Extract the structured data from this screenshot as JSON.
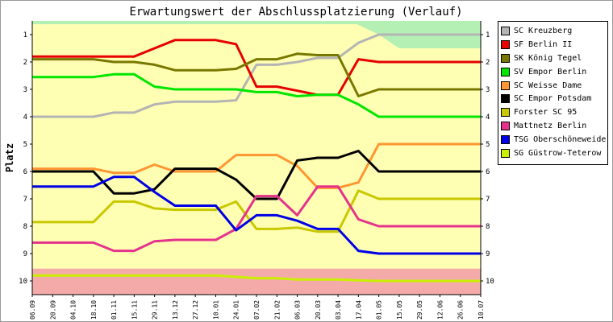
{
  "chart_data": {
    "type": "line",
    "title": "Erwartungswert der Abschlussplatzierung (Verlauf)",
    "xlabel": "",
    "ylabel": "Platz",
    "ylim": [
      10.5,
      0.5
    ],
    "y_ticks": [
      "1",
      "2",
      "3",
      "4",
      "5",
      "6",
      "7",
      "8",
      "9",
      "10"
    ],
    "categories": [
      "06.09",
      "20.09",
      "04.10",
      "18.10",
      "01.11",
      "15.11",
      "29.11",
      "13.12",
      "27.12",
      "10.01",
      "24.01",
      "07.02",
      "21.02",
      "06.03",
      "20.03",
      "03.04",
      "17.04",
      "01.05",
      "15.05",
      "29.05",
      "12.06",
      "26.06",
      "10.07"
    ],
    "grid": false,
    "legend_position": "right",
    "series": [
      {
        "name": "SC Kreuzberg",
        "color": "#b4b4b4",
        "values": [
          4.0,
          4.0,
          4.0,
          4.0,
          3.85,
          3.85,
          3.55,
          3.45,
          3.45,
          3.45,
          3.4,
          2.1,
          2.1,
          2.0,
          1.85,
          1.85,
          1.3,
          1.0,
          1.0,
          1.0,
          1.0,
          1.0,
          1.0
        ]
      },
      {
        "name": "SF Berlin II",
        "color": "#e60000",
        "values": [
          1.8,
          1.8,
          1.8,
          1.8,
          1.8,
          1.8,
          1.5,
          1.2,
          1.2,
          1.2,
          1.35,
          2.9,
          2.9,
          3.05,
          3.2,
          3.2,
          1.9,
          2.0,
          2.0,
          2.0,
          2.0,
          2.0,
          2.0
        ]
      },
      {
        "name": "SK König Tegel",
        "color": "#787800",
        "values": [
          1.9,
          1.9,
          1.9,
          1.9,
          2.0,
          2.0,
          2.1,
          2.3,
          2.3,
          2.3,
          2.25,
          1.9,
          1.9,
          1.7,
          1.75,
          1.75,
          3.25,
          3.0,
          3.0,
          3.0,
          3.0,
          3.0,
          3.0
        ]
      },
      {
        "name": "SV Empor Berlin",
        "color": "#00e600",
        "values": [
          2.55,
          2.55,
          2.55,
          2.55,
          2.45,
          2.45,
          2.9,
          3.0,
          3.0,
          3.0,
          3.0,
          3.1,
          3.1,
          3.25,
          3.2,
          3.2,
          3.55,
          4.0,
          4.0,
          4.0,
          4.0,
          4.0,
          4.0
        ]
      },
      {
        "name": "SC Weisse Dame",
        "color": "#ff9632",
        "values": [
          5.9,
          5.9,
          5.9,
          5.9,
          6.05,
          6.05,
          5.75,
          6.0,
          6.0,
          6.0,
          5.4,
          5.4,
          5.4,
          5.8,
          6.6,
          6.6,
          6.4,
          5.0,
          5.0,
          5.0,
          5.0,
          5.0,
          5.0
        ]
      },
      {
        "name": "SC Empor Potsdam",
        "color": "#000000",
        "values": [
          6.0,
          6.0,
          6.0,
          6.0,
          6.8,
          6.8,
          6.65,
          5.9,
          5.9,
          5.9,
          6.3,
          7.0,
          7.0,
          5.6,
          5.5,
          5.5,
          5.25,
          6.0,
          6.0,
          6.0,
          6.0,
          6.0,
          6.0
        ]
      },
      {
        "name": "Forster SC 95",
        "color": "#c8c800",
        "values": [
          7.85,
          7.85,
          7.85,
          7.85,
          7.1,
          7.1,
          7.35,
          7.4,
          7.4,
          7.4,
          7.1,
          8.1,
          8.1,
          8.05,
          8.2,
          8.2,
          6.7,
          7.0,
          7.0,
          7.0,
          7.0,
          7.0,
          7.0
        ]
      },
      {
        "name": "Mattnetz Berlin",
        "color": "#e6328c",
        "values": [
          8.6,
          8.6,
          8.6,
          8.6,
          8.9,
          8.9,
          8.55,
          8.5,
          8.5,
          8.5,
          8.1,
          6.9,
          6.9,
          7.6,
          6.55,
          6.55,
          7.75,
          8.0,
          8.0,
          8.0,
          8.0,
          8.0,
          8.0
        ]
      },
      {
        "name": "TSG Oberschöneweide",
        "color": "#0000e6",
        "values": [
          6.55,
          6.55,
          6.55,
          6.55,
          6.2,
          6.2,
          6.75,
          7.25,
          7.25,
          7.25,
          8.15,
          7.6,
          7.6,
          7.8,
          8.1,
          8.1,
          8.9,
          9.0,
          9.0,
          9.0,
          9.0,
          9.0,
          9.0
        ]
      },
      {
        "name": "SG Güstrow-Teterow",
        "color": "#c8f000",
        "values": [
          9.8,
          9.8,
          9.8,
          9.8,
          9.8,
          9.8,
          9.8,
          9.8,
          9.8,
          9.8,
          9.85,
          9.9,
          9.9,
          9.95,
          9.95,
          9.95,
          9.98,
          10.0,
          10.0,
          10.0,
          10.0,
          10.0,
          10.0
        ]
      }
    ],
    "background_zones": {
      "promotion": "#b4f0b4",
      "middle": "#ffff b4",
      "relegation": "#f5aaaa"
    }
  }
}
